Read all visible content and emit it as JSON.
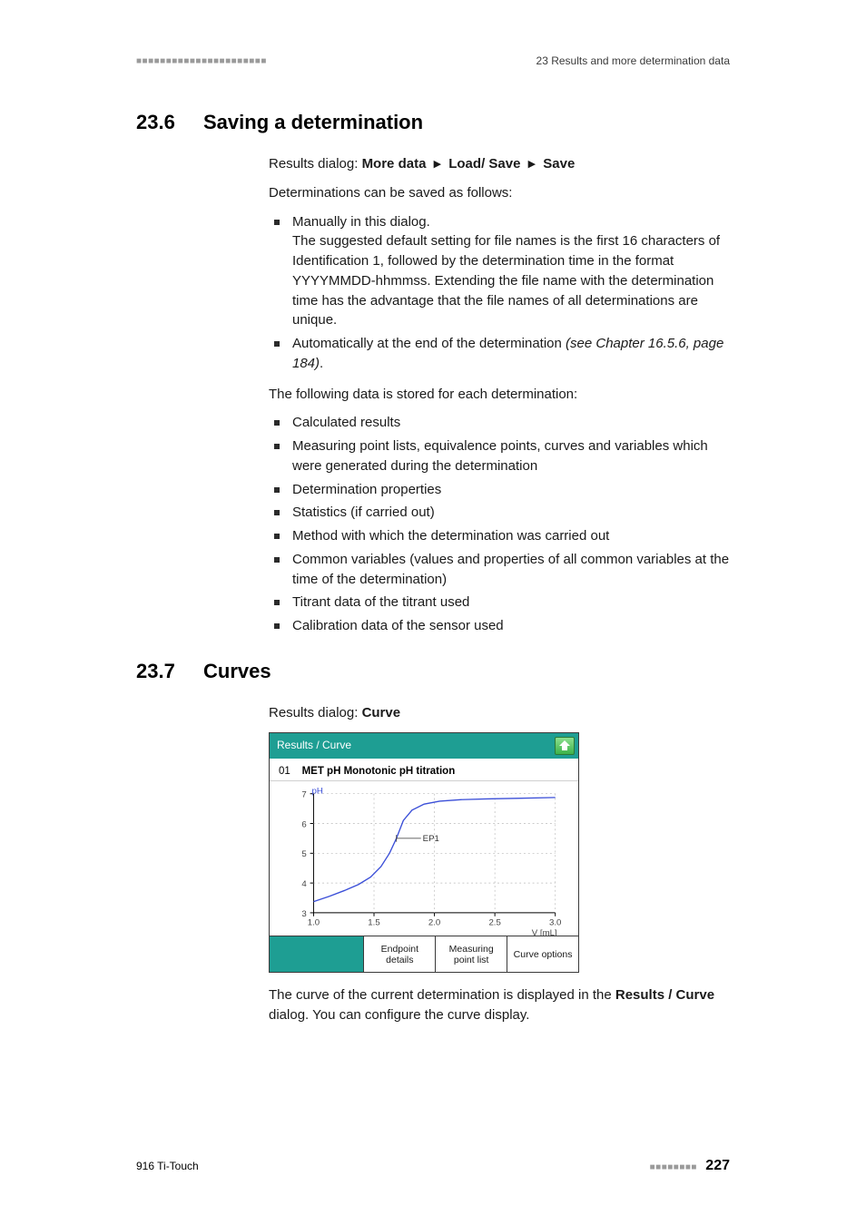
{
  "header": {
    "right_section": "23 Results and more determination data"
  },
  "sec1": {
    "number": "23.6",
    "title": "Saving a determination",
    "breadcrumb_prefix": "Results dialog: ",
    "breadcrumb_parts": [
      "More data",
      "Load/ Save",
      "Save"
    ],
    "intro": "Determinations can be saved as follows:",
    "bullets_a": [
      {
        "lead": "Manually in this dialog.",
        "rest": "The suggested default setting for file names is the first 16 characters of Identification 1, followed by the determination time in the format YYYYMMDD-hhmmss. Extending the file name with the determination time has the advantage that the file names of all determinations are unique."
      },
      {
        "lead": "Automatically at the end of the determination ",
        "italic": "(see Chapter 16.5.6, page 184)",
        "tail": "."
      }
    ],
    "stored_intro": "The following data is stored for each determination:",
    "bullets_b": [
      "Calculated results",
      "Measuring point lists, equivalence points, curves and variables which were generated during the determination",
      "Determination properties",
      "Statistics (if carried out)",
      "Method with which the determination was carried out",
      "Common variables (values and properties of all common variables at the time of the determination)",
      "Titrant data of the titrant used",
      "Calibration data of the sensor used"
    ]
  },
  "sec2": {
    "number": "23.7",
    "title": "Curves",
    "breadcrumb_prefix": "Results dialog: ",
    "breadcrumb_bold": "Curve",
    "device": {
      "title": "Results / Curve",
      "subtitle_num": "01",
      "subtitle_text": "MET pH   Monotonic pH titration",
      "y_label": "pH",
      "y_ticks": [
        "7",
        "6",
        "5",
        "4",
        "3"
      ],
      "x_ticks": [
        "1.0",
        "1.5",
        "2.0",
        "2.5",
        "3.0"
      ],
      "x_unit": "V [mL]",
      "ep_label": "EP1",
      "buttons": [
        "Endpoint details",
        "Measuring point list",
        "Curve options"
      ],
      "colors": {
        "bar": "#1e9e93",
        "curve": "#3b4fd8",
        "grid": "#b8b8b8",
        "axis_label": "#3b4fd8"
      },
      "curve_points": [
        [
          0,
          15
        ],
        [
          18,
          22
        ],
        [
          36,
          30
        ],
        [
          52,
          38
        ],
        [
          66,
          48
        ],
        [
          78,
          62
        ],
        [
          88,
          80
        ],
        [
          96,
          100
        ],
        [
          104,
          124
        ],
        [
          114,
          138
        ],
        [
          128,
          146
        ],
        [
          146,
          150
        ],
        [
          170,
          152
        ],
        [
          200,
          153
        ],
        [
          240,
          154
        ],
        [
          280,
          155
        ]
      ],
      "ep_x": 96,
      "ep_y": 100
    },
    "para1_a": "The curve of the current determination is displayed in the ",
    "para1_bold": "Results / Curve",
    "para1_b": " dialog. You can configure the curve display."
  },
  "footer": {
    "product": "916 Ti-Touch",
    "page": "227"
  }
}
